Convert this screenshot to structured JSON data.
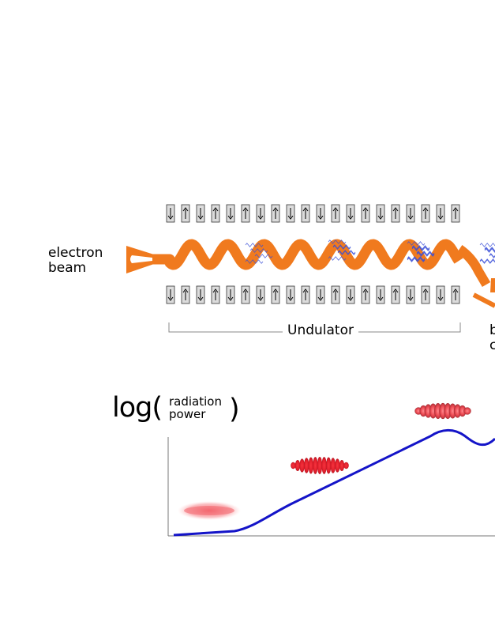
{
  "labels": {
    "electron_line1": "electron",
    "electron_line2": "beam",
    "undulator": "Undulator",
    "cut_line1": "b",
    "cut_line2": "c",
    "log": "log(",
    "radiation": "radiation",
    "power": "power",
    "close_paren": ")"
  },
  "magnets": {
    "top": [
      "down",
      "up",
      "down",
      "up",
      "down",
      "up",
      "down",
      "up",
      "down",
      "up",
      "down",
      "up",
      "down",
      "up",
      "down",
      "up",
      "down",
      "up",
      "down",
      "up"
    ],
    "bottom": [
      "down",
      "up",
      "down",
      "up",
      "down",
      "up",
      "down",
      "up",
      "down",
      "up",
      "down",
      "up",
      "down",
      "up",
      "down",
      "up",
      "down",
      "up",
      "down",
      "up"
    ]
  },
  "colors": {
    "electron_path": "#f07a1e",
    "photon": "#3a4fd8",
    "power_curve": "#1414c8",
    "bunch": "#e8222e",
    "magnet_fill": "#dcdcdc"
  },
  "bunch_stages": [
    "uniform",
    "microbunched",
    "saturated"
  ]
}
